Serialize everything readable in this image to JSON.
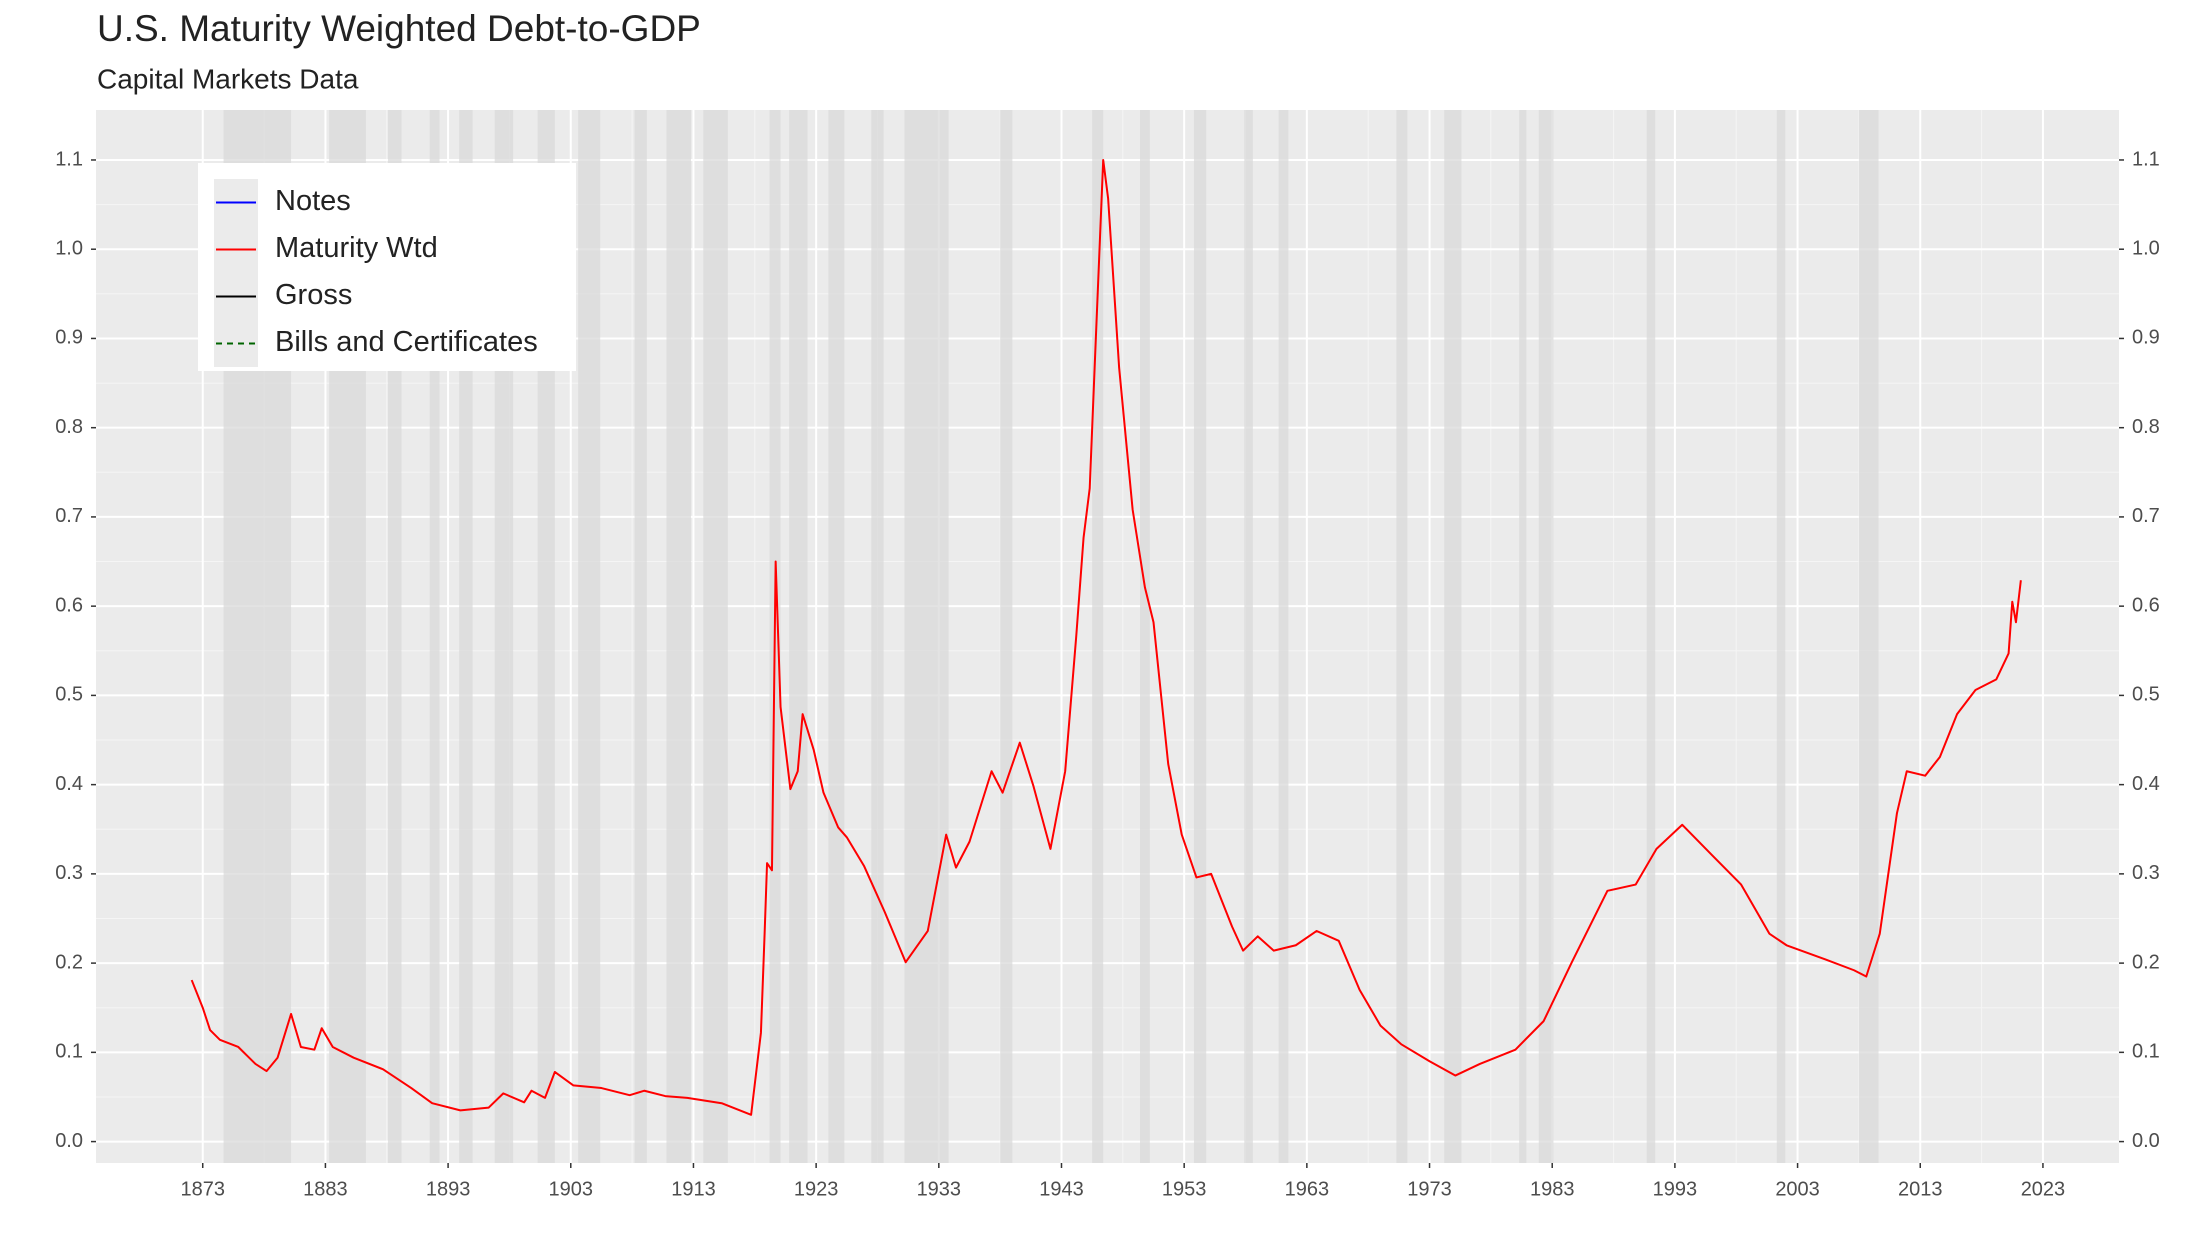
{
  "chart_data": {
    "type": "line",
    "title": "U.S. Maturity Weighted Debt-to-GDP",
    "subtitle": "Capital Markets Data",
    "xlim": [
      1864.3,
      2029.2
    ],
    "ylim": [
      -0.024,
      1.156
    ],
    "xticks": [
      1873,
      1883,
      1893,
      1903,
      1913,
      1923,
      1933,
      1943,
      1953,
      1963,
      1973,
      1983,
      1993,
      2003,
      2013,
      2023
    ],
    "yticks": [
      {
        "value": 0,
        "label": "0.0"
      },
      0.1,
      0.2,
      0.3,
      0.4,
      0.5,
      0.6,
      0.7,
      0.8,
      0.9,
      {
        "value": 1,
        "label": "1.0"
      },
      1.1
    ],
    "grid": true,
    "legend_position": "top-left",
    "legend": [
      {
        "name": "Notes",
        "color": "#0000ff",
        "dashed": false
      },
      {
        "name": "Maturity Wtd",
        "color": "#ff0000",
        "dashed": false
      },
      {
        "name": "Gross",
        "color": "#000000",
        "dashed": false
      },
      {
        "name": "Bills and Certificates",
        "color": "#006400",
        "dashed": true
      }
    ],
    "recessions": [
      [
        1874.7,
        1880.2
      ],
      [
        1883.3,
        1886.3
      ],
      [
        1888.1,
        1889.2
      ],
      [
        1891.5,
        1892.3
      ],
      [
        1893.9,
        1895.0
      ],
      [
        1896.8,
        1898.3
      ],
      [
        1900.3,
        1901.7
      ],
      [
        1903.6,
        1905.4
      ],
      [
        1908.2,
        1909.2
      ],
      [
        1910.8,
        1912.8
      ],
      [
        1913.8,
        1915.8
      ],
      [
        1919.2,
        1920.1
      ],
      [
        1920.8,
        1922.3
      ],
      [
        1924.0,
        1925.3
      ],
      [
        1927.5,
        1928.5
      ],
      [
        1930.2,
        1933.8
      ],
      [
        1938.0,
        1939.0
      ],
      [
        1945.5,
        1946.4
      ],
      [
        1949.4,
        1950.2
      ],
      [
        1953.8,
        1954.8
      ],
      [
        1957.9,
        1958.6
      ],
      [
        1960.7,
        1961.5
      ],
      [
        1970.3,
        1971.2
      ],
      [
        1974.2,
        1975.6
      ],
      [
        1980.3,
        1980.9
      ],
      [
        1981.9,
        1983.1
      ],
      [
        1990.7,
        1991.4
      ],
      [
        2001.3,
        2002.0
      ],
      [
        2008.0,
        2009.6
      ]
    ],
    "recession_color": "#d9d9d9",
    "series": [
      {
        "name": "Maturity Wtd",
        "color": "#ff0000",
        "x": [
          1872.1,
          1873,
          1873.6,
          1874.4,
          1875.9,
          1877.3,
          1878.2,
          1879.1,
          1880.2,
          1881.0,
          1882.1,
          1882.7,
          1883.6,
          1885.3,
          1887.7,
          1890.0,
          1891.7,
          1894.0,
          1896.3,
          1897.5,
          1899.2,
          1899.8,
          1900.9,
          1901.7,
          1903.2,
          1905.5,
          1907.8,
          1909.0,
          1910.7,
          1912.5,
          1915.3,
          1917.7,
          1918.5,
          1918.8,
          1919.0,
          1919.4,
          1919.7,
          1920.1,
          1920.9,
          1921.5,
          1921.9,
          1922.8,
          1923.6,
          1924.8,
          1925.5,
          1926.9,
          1928.6,
          1930.3,
          1932.1,
          1933.6,
          1934.4,
          1935.5,
          1937.3,
          1938.2,
          1939.6,
          1940.7,
          1942.1,
          1943.3,
          1944.2,
          1944.8,
          1945.3,
          1945.7,
          1946.4,
          1946.8,
          1947.7,
          1948.8,
          1949.8,
          1950.5,
          1951.7,
          1952.8,
          1954.0,
          1955.2,
          1956.9,
          1957.8,
          1959.0,
          1960.3,
          1962.1,
          1963.8,
          1965.6,
          1967.3,
          1969.0,
          1970.7,
          1973.0,
          1975.1,
          1977.1,
          1980.0,
          1982.3,
          1984.6,
          1987.5,
          1989.8,
          1991.5,
          1993.6,
          1996.1,
          1998.4,
          2000.7,
          2002.1,
          2005.3,
          2007.6,
          2008.6,
          2009.7,
          2011.1,
          2011.9,
          2013.4,
          2014.6,
          2016.0,
          2017.5,
          2019.2,
          2020.2,
          2020.5,
          2020.8,
          2021.2
        ],
        "values": [
          0.181,
          0.15,
          0.125,
          0.114,
          0.106,
          0.087,
          0.079,
          0.094,
          0.143,
          0.106,
          0.103,
          0.127,
          0.106,
          0.094,
          0.081,
          0.06,
          0.043,
          0.035,
          0.038,
          0.054,
          0.044,
          0.057,
          0.049,
          0.078,
          0.063,
          0.06,
          0.052,
          0.057,
          0.051,
          0.049,
          0.043,
          0.03,
          0.122,
          0.233,
          0.312,
          0.304,
          0.65,
          0.487,
          0.395,
          0.415,
          0.479,
          0.439,
          0.391,
          0.352,
          0.341,
          0.309,
          0.257,
          0.201,
          0.236,
          0.344,
          0.307,
          0.336,
          0.415,
          0.391,
          0.447,
          0.399,
          0.328,
          0.415,
          0.566,
          0.677,
          0.732,
          0.867,
          1.1,
          1.057,
          0.867,
          0.708,
          0.621,
          0.582,
          0.423,
          0.344,
          0.296,
          0.3,
          0.241,
          0.214,
          0.23,
          0.214,
          0.22,
          0.236,
          0.225,
          0.17,
          0.13,
          0.109,
          0.09,
          0.074,
          0.087,
          0.103,
          0.135,
          0.201,
          0.281,
          0.288,
          0.328,
          0.355,
          0.32,
          0.288,
          0.233,
          0.22,
          0.204,
          0.192,
          0.185,
          0.233,
          0.368,
          0.415,
          0.41,
          0.431,
          0.479,
          0.506,
          0.518,
          0.547,
          0.605,
          0.582,
          0.629
        ]
      }
    ]
  }
}
